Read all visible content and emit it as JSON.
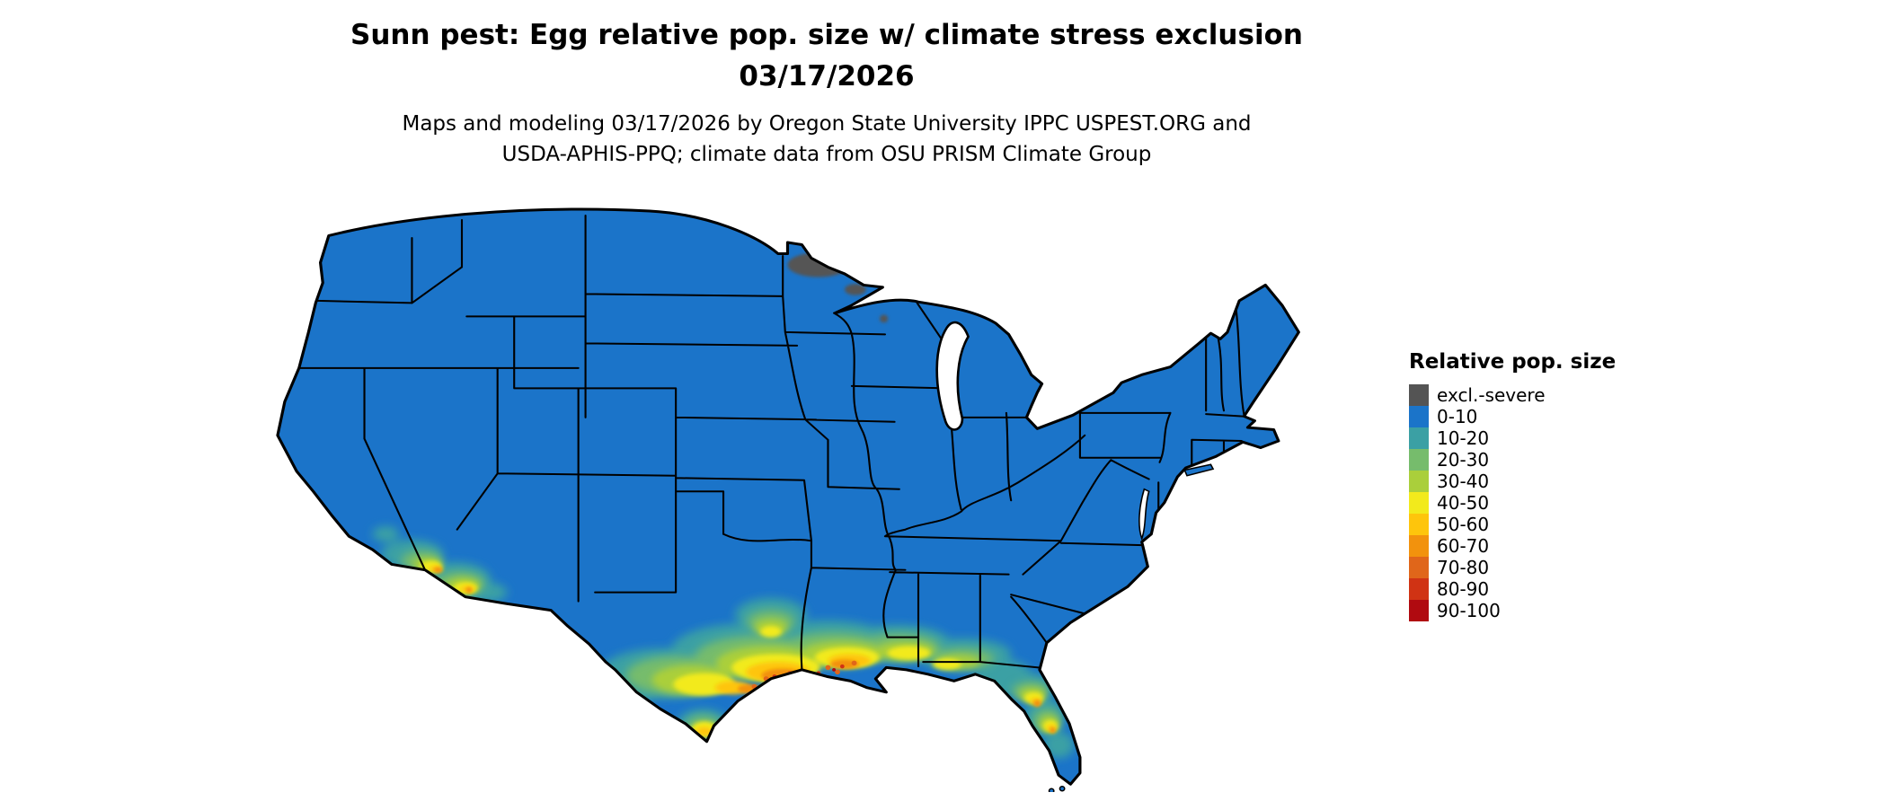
{
  "header": {
    "title_line1": "Sunn pest: Egg relative pop. size w/ climate stress exclusion",
    "title_line2": "03/17/2026",
    "subtitle_line1": "Maps and modeling 03/17/2026 by Oregon State University IPPC USPEST.ORG and",
    "subtitle_line2": "USDA-APHIS-PPQ; climate data from OSU PRISM Climate Group"
  },
  "legend": {
    "title": "Relative pop. size",
    "items": [
      {
        "label": "excl.-severe",
        "color": "#545454"
      },
      {
        "label": "0-10",
        "color": "#1B74C9"
      },
      {
        "label": "10-20",
        "color": "#3BA0A4"
      },
      {
        "label": "20-30",
        "color": "#76BC6C"
      },
      {
        "label": "30-40",
        "color": "#AACF3B"
      },
      {
        "label": "40-50",
        "color": "#F2EA1C"
      },
      {
        "label": "50-60",
        "color": "#FEC50C"
      },
      {
        "label": "60-70",
        "color": "#F2920D"
      },
      {
        "label": "70-80",
        "color": "#E0661A"
      },
      {
        "label": "80-90",
        "color": "#D03314"
      },
      {
        "label": "90-100",
        "color": "#B00A10"
      }
    ]
  },
  "map": {
    "region": "Contiguous United States",
    "base_fill_category": "0-10",
    "hotspots": [
      "southern Arizona and southeastern California",
      "southern and coastal Texas",
      "Gulf Coast (Louisiana, Mississippi, Alabama)",
      "central Florida"
    ],
    "excluded_areas": [
      "northern Minnesota"
    ]
  }
}
